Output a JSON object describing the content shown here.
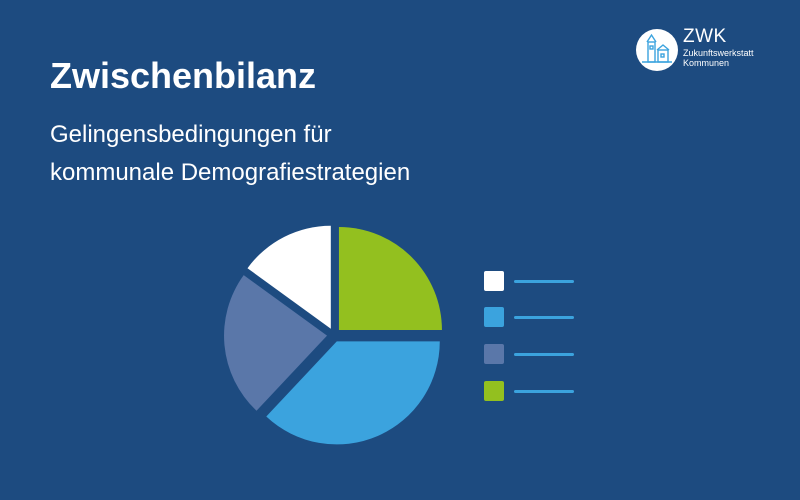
{
  "slide": {
    "title": "Zwischenbilanz",
    "subtitle_line1": "Gelingensbedingungen für",
    "subtitle_line2": "kommunale Demografiestrategien",
    "background_color": "#1d4b80"
  },
  "logo": {
    "name": "ZWK",
    "subtitle_line1": "Zukunftswerkstatt",
    "subtitle_line2": "Kommunen"
  },
  "chart_data": {
    "type": "pie",
    "title": "",
    "slices": [
      {
        "value": 25,
        "color": "#93c01f"
      },
      {
        "value": 37,
        "color": "#3ba3de"
      },
      {
        "value": 23,
        "color": "#5a77a9"
      },
      {
        "value": 15,
        "color": "#ffffff"
      }
    ],
    "legend": {
      "placement": "right",
      "entries": [
        {
          "color": "#ffffff"
        },
        {
          "color": "#3ba3de"
        },
        {
          "color": "#5a77a9"
        },
        {
          "color": "#93c01f"
        }
      ]
    }
  }
}
